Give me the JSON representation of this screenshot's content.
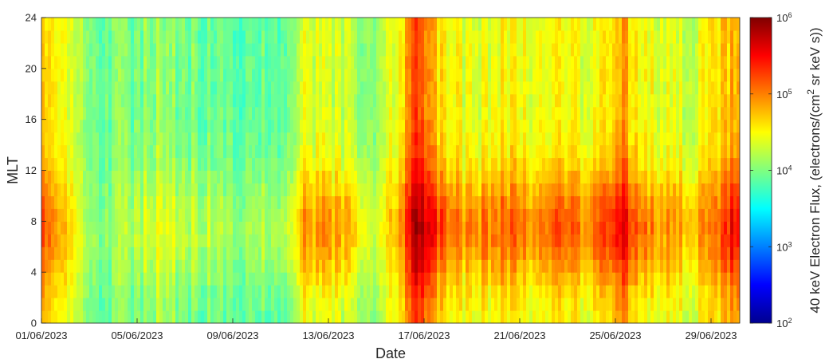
{
  "chart_data": {
    "type": "heatmap",
    "xlabel": "Date",
    "ylabel": "MLT",
    "x_tick_labels": [
      "01/06/2023",
      "05/06/2023",
      "09/06/2023",
      "13/06/2023",
      "17/06/2023",
      "21/06/2023",
      "25/06/2023",
      "29/06/2023"
    ],
    "x_tick_days": [
      1,
      5,
      9,
      13,
      17,
      21,
      25,
      29
    ],
    "xlim_days": [
      1,
      1,
      2023,
      30.2
    ],
    "y_ticks": [
      0,
      4,
      8,
      12,
      16,
      20,
      24
    ],
    "ylim": [
      0,
      24
    ],
    "mlt_bins": 24,
    "colorbar": {
      "label": "40 keV Electron Flux, (electrons/(cm",
      "label_sup": "2",
      "label_end": " sr keV s))",
      "scale": "log",
      "range": [
        100,
        1000000
      ],
      "ticks": [
        {
          "base": "10",
          "exp": "2"
        },
        {
          "base": "10",
          "exp": "3"
        },
        {
          "base": "10",
          "exp": "4"
        },
        {
          "base": "10",
          "exp": "5"
        },
        {
          "base": "10",
          "exp": "6"
        }
      ],
      "colormap": "jet"
    },
    "log10_flux_profile_by_day": [
      {
        "day": 1.0,
        "dayside": 5.2,
        "nightside": 4.7
      },
      {
        "day": 2.0,
        "dayside": 4.6,
        "nightside": 4.3
      },
      {
        "day": 3.0,
        "dayside": 4.0,
        "nightside": 3.9
      },
      {
        "day": 4.0,
        "dayside": 4.1,
        "nightside": 4.0
      },
      {
        "day": 5.0,
        "dayside": 4.3,
        "nightside": 4.0
      },
      {
        "day": 6.0,
        "dayside": 4.4,
        "nightside": 4.1
      },
      {
        "day": 7.0,
        "dayside": 4.3,
        "nightside": 4.0
      },
      {
        "day": 8.0,
        "dayside": 4.2,
        "nightside": 3.9
      },
      {
        "day": 9.0,
        "dayside": 4.1,
        "nightside": 3.9
      },
      {
        "day": 10.0,
        "dayside": 4.2,
        "nightside": 3.9
      },
      {
        "day": 11.0,
        "dayside": 4.1,
        "nightside": 3.8
      },
      {
        "day": 12.0,
        "dayside": 4.9,
        "nightside": 4.4
      },
      {
        "day": 13.0,
        "dayside": 4.9,
        "nightside": 4.3
      },
      {
        "day": 14.0,
        "dayside": 4.7,
        "nightside": 4.2
      },
      {
        "day": 15.0,
        "dayside": 4.2,
        "nightside": 4.0
      },
      {
        "day": 16.0,
        "dayside": 5.0,
        "nightside": 4.6
      },
      {
        "day": 16.5,
        "dayside": 5.9,
        "nightside": 5.3
      },
      {
        "day": 17.5,
        "dayside": 5.3,
        "nightside": 4.6
      },
      {
        "day": 18.5,
        "dayside": 4.9,
        "nightside": 4.4
      },
      {
        "day": 19.5,
        "dayside": 5.0,
        "nightside": 4.4
      },
      {
        "day": 20.5,
        "dayside": 5.1,
        "nightside": 4.5
      },
      {
        "day": 21.5,
        "dayside": 4.9,
        "nightside": 4.4
      },
      {
        "day": 22.5,
        "dayside": 5.2,
        "nightside": 4.5
      },
      {
        "day": 23.5,
        "dayside": 5.0,
        "nightside": 4.4
      },
      {
        "day": 24.5,
        "dayside": 5.3,
        "nightside": 4.6
      },
      {
        "day": 25.3,
        "dayside": 5.5,
        "nightside": 4.8
      },
      {
        "day": 26.0,
        "dayside": 5.0,
        "nightside": 4.4
      },
      {
        "day": 27.0,
        "dayside": 4.9,
        "nightside": 4.4
      },
      {
        "day": 28.0,
        "dayside": 4.8,
        "nightside": 4.3
      },
      {
        "day": 29.0,
        "dayside": 4.9,
        "nightside": 4.5
      },
      {
        "day": 29.8,
        "dayside": 5.5,
        "nightside": 4.8
      },
      {
        "day": 30.2,
        "dayside": 5.2,
        "nightside": 4.6
      }
    ]
  }
}
